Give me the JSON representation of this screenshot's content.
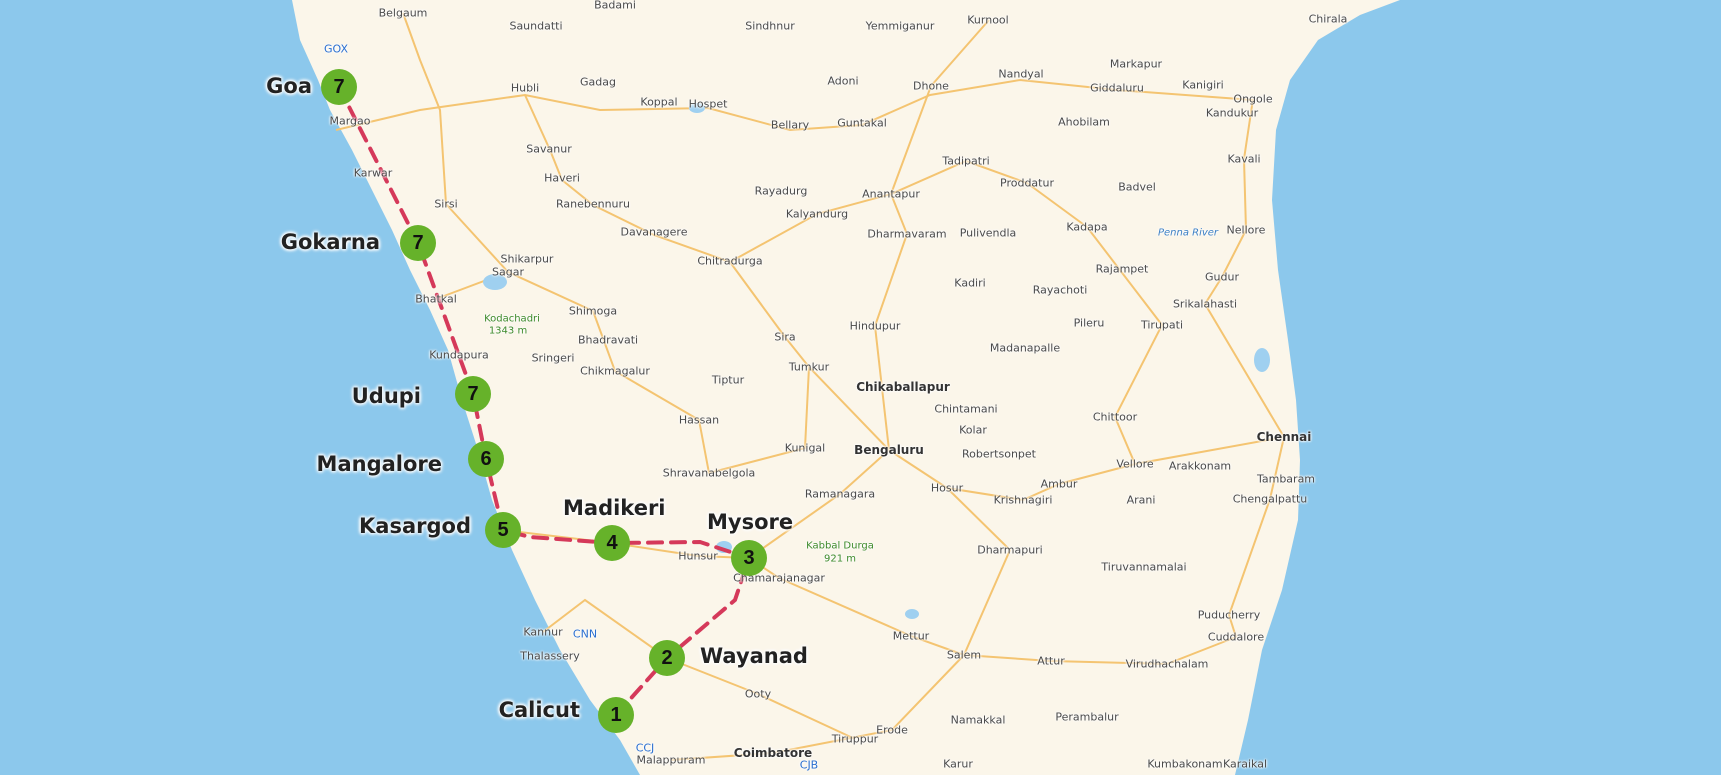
{
  "map": {
    "colors": {
      "sea": "#8cc8ec",
      "land": "#fbf6ea",
      "road": "#f4c471",
      "route": "#d5395a",
      "marker": "#66b22a"
    },
    "stops": [
      {
        "label": "Goa",
        "number": "7"
      },
      {
        "label": "Gokarna",
        "number": "7"
      },
      {
        "label": "Udupi",
        "number": "7"
      },
      {
        "label": "Mangalore",
        "number": "6"
      },
      {
        "label": "Kasargod",
        "number": "5"
      },
      {
        "label": "Madikeri",
        "number": "4"
      },
      {
        "label": "Mysore",
        "number": "3"
      },
      {
        "label": "Wayanad",
        "number": "2"
      },
      {
        "label": "Calicut",
        "number": "1"
      }
    ],
    "cities": [
      "Belgaum",
      "Saundatti",
      "Badami",
      "Sindhnur",
      "Yemmiganur",
      "Kurnool",
      "Chirala",
      "GOX",
      "Markapur",
      "Ongole",
      "Hubli",
      "Gadag",
      "Koppal",
      "Hospet",
      "Adoni",
      "Dhone",
      "Nandyal",
      "Giddaluru",
      "Kanigiri",
      "Kandukur",
      "Margao",
      "Savanur",
      "Bellary",
      "Guntakal",
      "Ahobilam",
      "Karwar",
      "Haveri",
      "Tadipatri",
      "Kavali",
      "Ranebennuru",
      "Rayadurg",
      "Anantapur",
      "Proddatur",
      "Badvel",
      "Sirsi",
      "Kalyandurg",
      "Davanagere",
      "Dharmavaram",
      "Pulivendla",
      "Kadapa",
      "Nellore",
      "Penna River",
      "Shikarpur",
      "Chitradurga",
      "Rajampet",
      "Gudur",
      "Sagar",
      "Kadiri",
      "Rayachoti",
      "Bhatkal",
      "Shimoga",
      "Kodachadri",
      "1343 m",
      "Srikalahasti",
      "Hindupur",
      "Bhadravati",
      "Sira",
      "Pileru",
      "Tirupati",
      "Madanapalle",
      "Kundapura",
      "Sringeri",
      "Chikmagalur",
      "Tiptur",
      "Tumkur",
      "Chikaballapur",
      "Chintamani",
      "Chittoor",
      "Chennai",
      "Hassan",
      "Kolar",
      "Kunigal",
      "Bengaluru",
      "Robertsonpet",
      "Arakkonam",
      "Tambaram",
      "Shravanabelgola",
      "Ramanagara",
      "Hosur",
      "Ambur",
      "Vellore",
      "Chengalpattu",
      "Arani",
      "Krishnagiri",
      "Kabbal Durga",
      "921 m",
      "Hunsur",
      "Dharmapuri",
      "Tiruvannamalai",
      "Chamarajanagar",
      "Puducherry",
      "Kannur",
      "CNN",
      "Mettur",
      "Cuddalore",
      "Thalassery",
      "Salem",
      "Attur",
      "Virudhachalam",
      "Ooty",
      "Erode",
      "Namakkal",
      "Perambalur",
      "CCJ",
      "Malappuram",
      "Coimbatore",
      "CJB",
      "Tiruppur",
      "Karur",
      "Kumbakonam",
      "Karaikal"
    ]
  }
}
